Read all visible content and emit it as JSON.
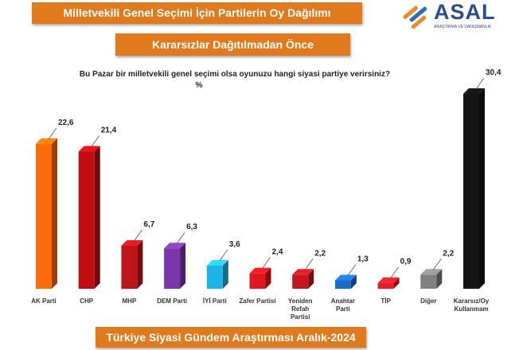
{
  "chart_data": {
    "type": "bar3d",
    "title": "Milletvekili Genel Seçimi İçin Partilerin Oy Dağılımı",
    "subtitle": "Kararsızlar Dağıtılmadan Önce",
    "question": "Bu Pazar bir milletvekili genel seçimi olsa oyunuzu hangi siyasi partiye verirsiniz?",
    "unit": "%",
    "footer": "Türkiye Siyasi Gündem Araştırması Aralık-2024",
    "logo": {
      "name": "ASAL",
      "tagline": "ARAŞTIRMA VE DANIŞMANLIK"
    },
    "categories": [
      "AK Parti",
      "CHP",
      "MHP",
      "DEM Parti",
      "İYİ Parti",
      "Zafer Partisi",
      "Yeniden\nRefah\nPartisi",
      "Anahtar\nParti",
      "TİP",
      "Diğer",
      "Kararsız/Oy\nKullanmam"
    ],
    "values": [
      22.6,
      21.4,
      6.7,
      6.3,
      3.6,
      2.4,
      2.2,
      1.3,
      0.9,
      2.2,
      30.4
    ],
    "value_labels": [
      "22,6",
      "21,4",
      "6,7",
      "6,3",
      "3,6",
      "2,4",
      "2,2",
      "1,3",
      "0,9",
      "2,2",
      "30,4"
    ],
    "colors": [
      "#ff6a0a",
      "#c00d12",
      "#c0151b",
      "#7a35a8",
      "#1fb2e6",
      "#e3161d",
      "#c4161c",
      "#1a6cc4",
      "#ec1a22",
      "#808080",
      "#141414"
    ]
  }
}
